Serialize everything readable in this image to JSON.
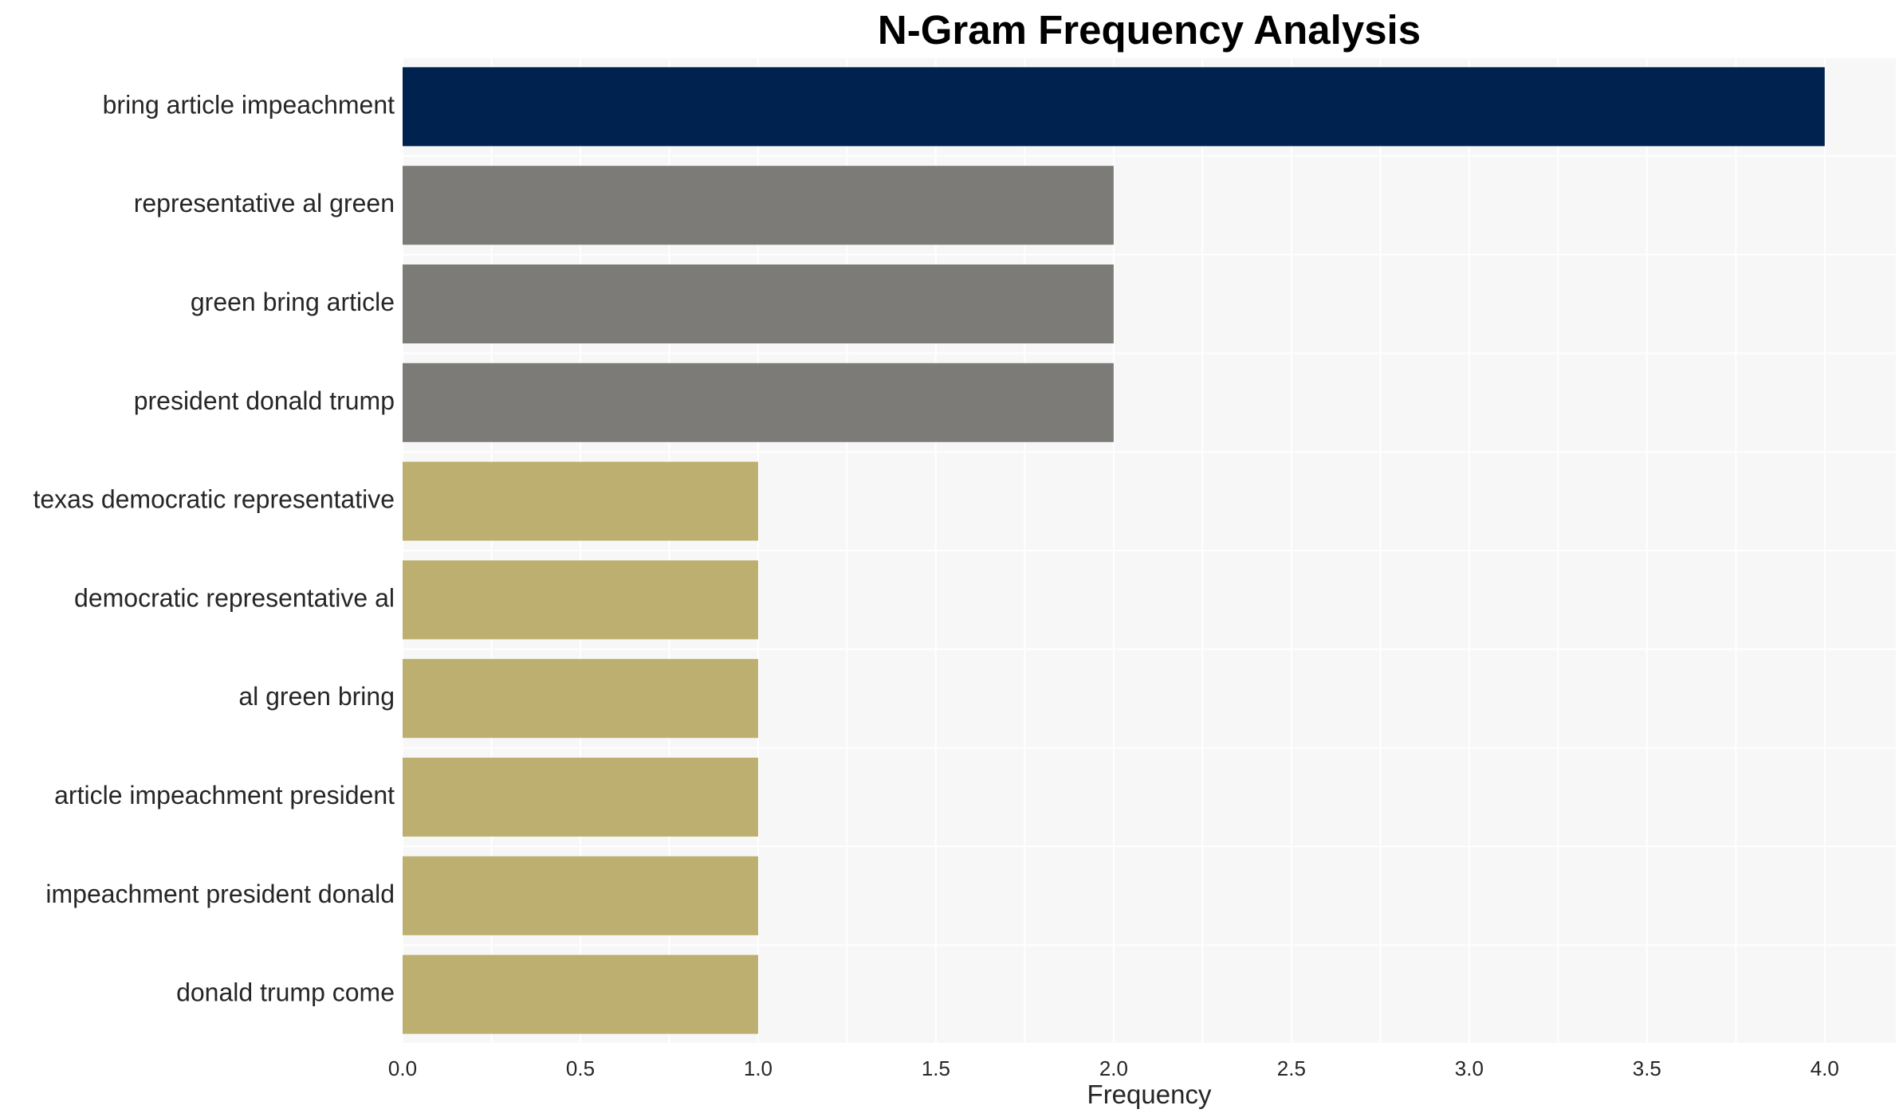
{
  "chart_data": {
    "type": "bar",
    "orientation": "horizontal",
    "title": "N-Gram Frequency Analysis",
    "xlabel": "Frequency",
    "ylabel": "",
    "xlim": [
      0,
      4.2
    ],
    "x_ticks": [
      "0.0",
      "0.5",
      "1.0",
      "1.5",
      "2.0",
      "2.5",
      "3.0",
      "3.5",
      "4.0"
    ],
    "grid": true,
    "categories": [
      "bring article impeachment",
      "representative al green",
      "green bring article",
      "president donald trump",
      "texas democratic representative",
      "democratic representative al",
      "al green bring",
      "article impeachment president",
      "impeachment president donald",
      "donald trump come"
    ],
    "values": [
      4,
      2,
      2,
      2,
      1,
      1,
      1,
      1,
      1,
      1
    ],
    "colors": [
      "#00224e",
      "#7c7b78",
      "#7c7b78",
      "#7c7b78",
      "#bcaf6f",
      "#bcaf6f",
      "#bcaf6f",
      "#bcaf6f",
      "#bcaf6f",
      "#bcaf6f"
    ],
    "plot_background": "#f7f7f7"
  }
}
